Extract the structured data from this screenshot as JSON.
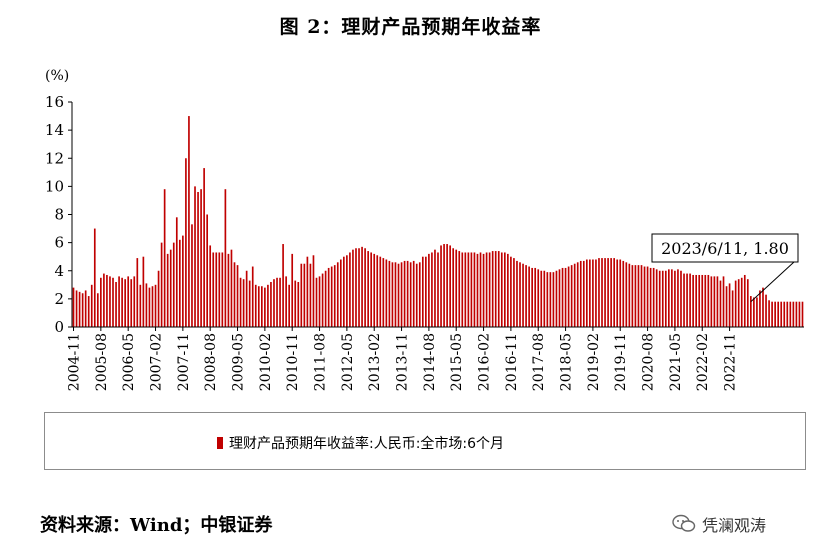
{
  "title": "图 2：理财产品预期年收益率",
  "source": "资料来源：Wind；中银证券",
  "watermark": "凭澜观涛",
  "chart_data": {
    "type": "bar",
    "unit_label": "(%)",
    "ylim": [
      0,
      16
    ],
    "yticks": [
      0,
      2,
      4,
      6,
      8,
      10,
      12,
      14,
      16
    ],
    "x_start": "2004-11",
    "x_end": "2023-06",
    "xtick_labels": [
      "2004-11",
      "2005-08",
      "2006-05",
      "2007-02",
      "2007-11",
      "2008-08",
      "2009-05",
      "2010-02",
      "2010-11",
      "2011-08",
      "2012-05",
      "2013-02",
      "2013-11",
      "2014-08",
      "2015-05",
      "2016-02",
      "2016-11",
      "2017-08",
      "2018-05",
      "2019-02",
      "2019-11",
      "2020-08",
      "2021-05",
      "2022-02",
      "2022-11"
    ],
    "bar_color": "#c00000",
    "grid": false,
    "legend_position": "bottom",
    "series": [
      {
        "name": "理财产品预期年收益率:人民币:全市场:6个月",
        "values": [
          2.8,
          2.6,
          2.5,
          2.4,
          2.6,
          2.2,
          3.0,
          7.0,
          2.4,
          3.5,
          3.8,
          3.7,
          3.6,
          3.5,
          3.2,
          3.6,
          3.5,
          3.4,
          3.6,
          3.4,
          3.6,
          4.9,
          3.0,
          5.0,
          3.1,
          2.8,
          2.9,
          3.0,
          4.0,
          6.0,
          9.8,
          5.2,
          5.5,
          6.0,
          7.8,
          6.2,
          6.5,
          12.0,
          15.0,
          7.3,
          10.0,
          9.6,
          9.8,
          11.3,
          8.0,
          5.8,
          5.3,
          5.3,
          5.3,
          5.3,
          9.8,
          5.2,
          5.5,
          4.6,
          4.4,
          3.5,
          3.4,
          4.0,
          3.3,
          4.3,
          3.0,
          2.9,
          2.9,
          2.8,
          3.0,
          3.2,
          3.4,
          3.5,
          3.5,
          5.9,
          3.6,
          3.0,
          5.2,
          3.3,
          3.2,
          4.5,
          4.5,
          5.0,
          4.5,
          5.1,
          3.5,
          3.6,
          3.8,
          4.0,
          4.2,
          4.3,
          4.4,
          4.6,
          4.8,
          5.0,
          5.1,
          5.3,
          5.5,
          5.6,
          5.6,
          5.7,
          5.6,
          5.4,
          5.3,
          5.2,
          5.1,
          5.0,
          4.9,
          4.8,
          4.7,
          4.6,
          4.6,
          4.5,
          4.6,
          4.7,
          4.7,
          4.6,
          4.7,
          4.5,
          4.6,
          5.0,
          5.0,
          5.2,
          5.3,
          5.5,
          5.3,
          5.8,
          5.9,
          5.9,
          5.8,
          5.6,
          5.5,
          5.4,
          5.3,
          5.3,
          5.3,
          5.3,
          5.3,
          5.2,
          5.3,
          5.2,
          5.3,
          5.3,
          5.4,
          5.4,
          5.4,
          5.3,
          5.3,
          5.2,
          5.0,
          4.9,
          4.7,
          4.6,
          4.5,
          4.4,
          4.3,
          4.2,
          4.2,
          4.1,
          4.0,
          4.0,
          3.9,
          3.9,
          3.9,
          4.0,
          4.1,
          4.2,
          4.2,
          4.3,
          4.4,
          4.5,
          4.6,
          4.7,
          4.7,
          4.8,
          4.8,
          4.8,
          4.8,
          4.9,
          4.9,
          4.9,
          4.9,
          4.9,
          4.9,
          4.8,
          4.8,
          4.7,
          4.6,
          4.5,
          4.4,
          4.4,
          4.4,
          4.4,
          4.3,
          4.3,
          4.2,
          4.2,
          4.1,
          4.0,
          4.0,
          4.0,
          4.1,
          4.1,
          4.0,
          4.1,
          4.0,
          3.8,
          3.8,
          3.8,
          3.7,
          3.7,
          3.7,
          3.7,
          3.7,
          3.7,
          3.6,
          3.6,
          3.6,
          3.3,
          3.6,
          2.9,
          3.1,
          2.6,
          3.3,
          3.4,
          3.5,
          3.7,
          3.4,
          2.2,
          2.1,
          2.1,
          2.6,
          2.8,
          2.3,
          1.9,
          1.8,
          1.8,
          1.8,
          1.8,
          1.8,
          1.8,
          1.8,
          1.8,
          1.8,
          1.8,
          1.8
        ]
      }
    ],
    "annotation": {
      "text": "2023/6/11, 1.80",
      "x": "2023-06",
      "y": 1.8
    }
  }
}
